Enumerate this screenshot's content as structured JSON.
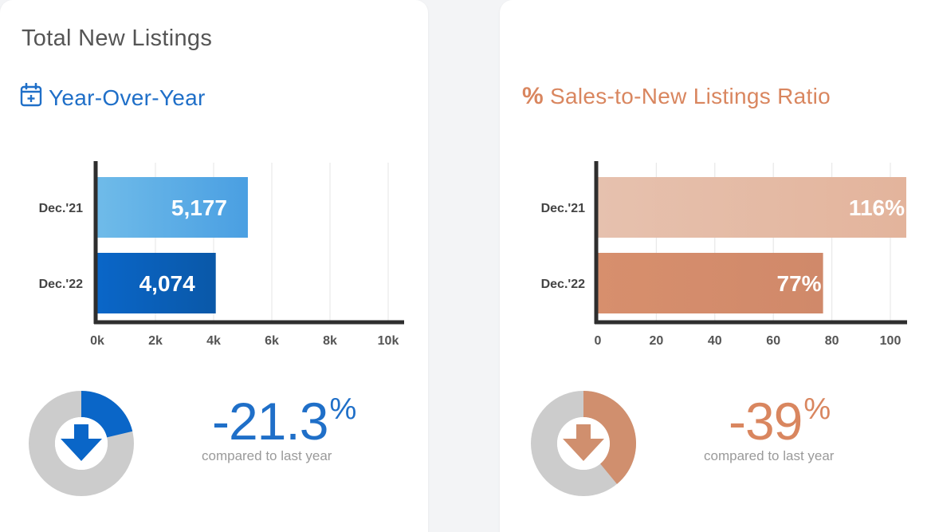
{
  "left_card": {
    "title": "Total New Listings",
    "subtitle": "Year-Over-Year",
    "change": {
      "value": "-21.3",
      "symbol": "%",
      "caption": "compared to last year",
      "fraction_shown": 0.213
    }
  },
  "right_card": {
    "subtitle_symbol": "%",
    "subtitle": "Sales-to-New Listings Ratio",
    "change": {
      "value": "-39",
      "symbol": "%",
      "caption": "compared to last year",
      "fraction_shown": 0.39
    }
  },
  "colors": {
    "blue_accent": "#1f6fc8",
    "orange_accent": "#d9865f",
    "donut_grey": "#cccccc",
    "axis": "#2e2e2e"
  },
  "chart_data": [
    {
      "type": "bar",
      "orientation": "horizontal",
      "categories": [
        "Dec.'21",
        "Dec.'22"
      ],
      "values": [
        5177,
        4074
      ],
      "value_labels": [
        "5,177",
        "4,074"
      ],
      "xlim": [
        0,
        10500
      ],
      "xticks": [
        0,
        2000,
        4000,
        6000,
        8000,
        10000
      ],
      "xtick_labels": [
        "0k",
        "2k",
        "4k",
        "6k",
        "8k",
        "10k"
      ],
      "grid": true,
      "bar_gradients": [
        [
          "#6fbbe9",
          "#4a9fe2"
        ],
        [
          "#0a66c8",
          "#0a58a8"
        ]
      ]
    },
    {
      "type": "bar",
      "orientation": "horizontal",
      "categories": [
        "Dec.'21",
        "Dec.'22"
      ],
      "values": [
        116,
        77
      ],
      "value_labels": [
        "116%",
        "77%"
      ],
      "xlim": [
        0,
        105
      ],
      "xticks": [
        0,
        20,
        40,
        60,
        80,
        100
      ],
      "xtick_labels": [
        "0",
        "20",
        "40",
        "60",
        "80",
        "100"
      ],
      "grid": true,
      "bar_gradients": [
        [
          "#e6c1ae",
          "#e3b49c"
        ],
        [
          "#d78f6d",
          "#d0896a"
        ]
      ]
    }
  ]
}
